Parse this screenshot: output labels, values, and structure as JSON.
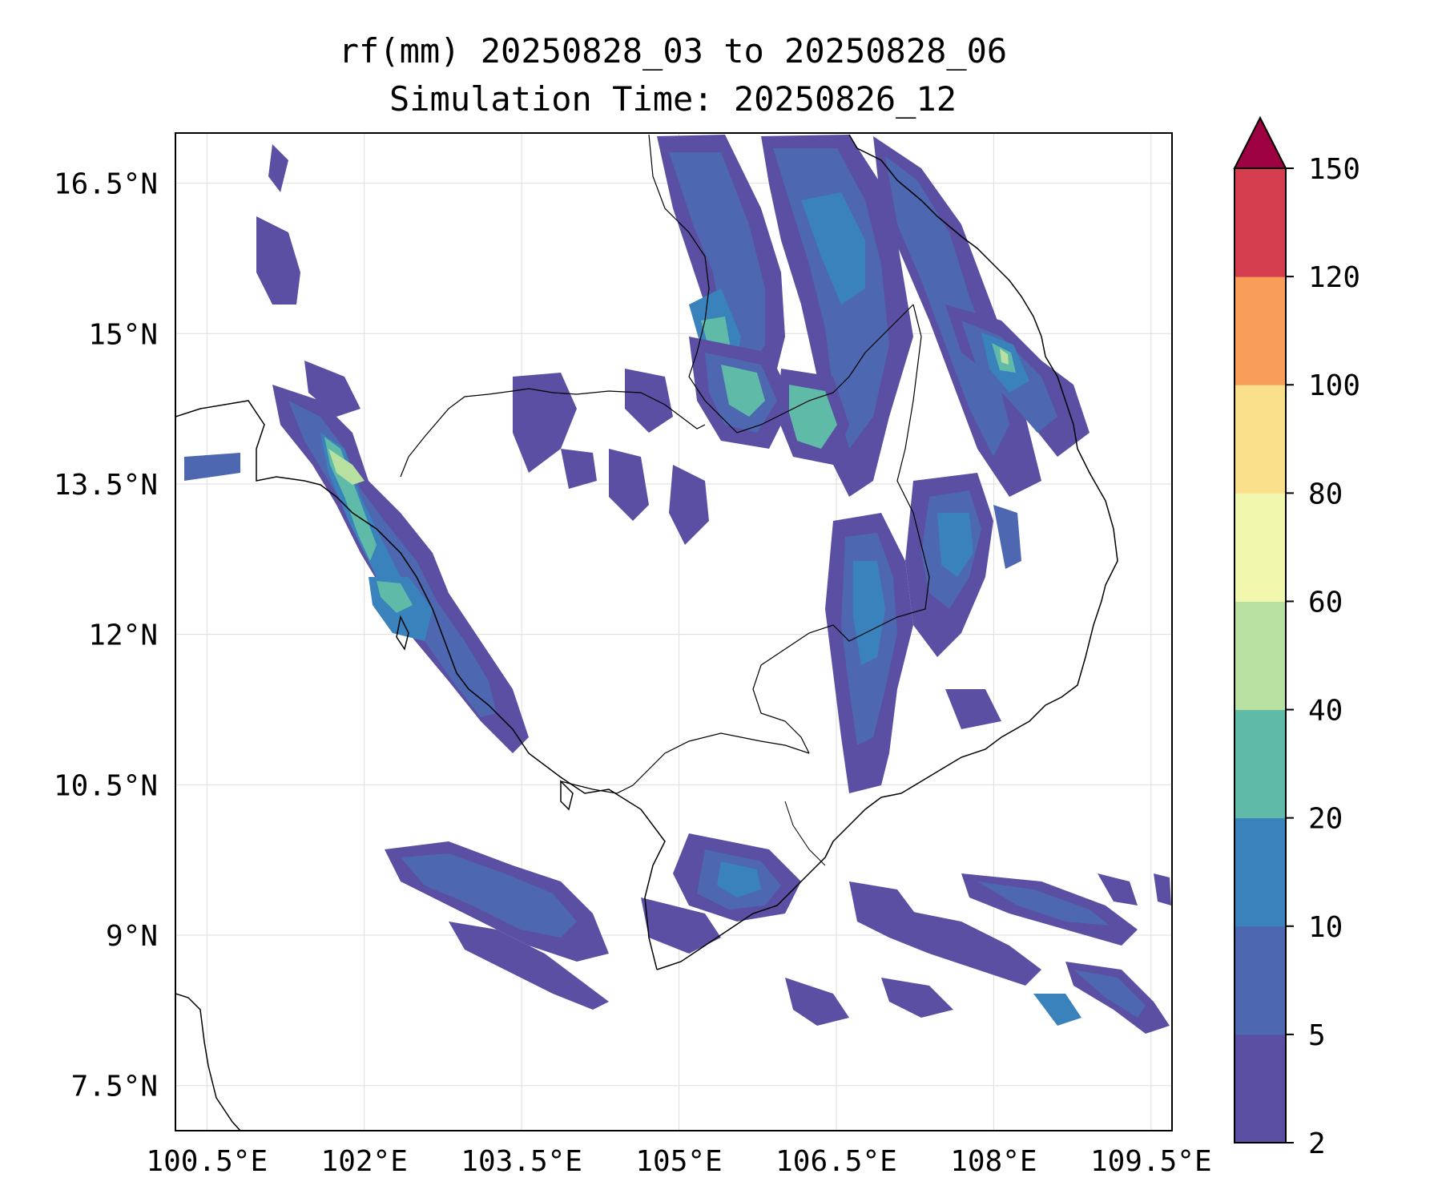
{
  "title_line1": "rf(mm) 20250828_03 to 20250828_06",
  "title_line2": "Simulation Time: 20250826_12",
  "map": {
    "lon_range": [
      100.2,
      109.7
    ],
    "lat_range": [
      7.05,
      17.0
    ],
    "lon_ticks": [
      {
        "value": 100.5,
        "label": "100.5°E"
      },
      {
        "value": 102.0,
        "label": "102°E"
      },
      {
        "value": 103.5,
        "label": "103.5°E"
      },
      {
        "value": 105.0,
        "label": "105°E"
      },
      {
        "value": 106.5,
        "label": "106.5°E"
      },
      {
        "value": 108.0,
        "label": "108°E"
      },
      {
        "value": 109.5,
        "label": "109.5°E"
      }
    ],
    "lat_ticks": [
      {
        "value": 16.5,
        "label": "16.5°N"
      },
      {
        "value": 15.0,
        "label": "15°N"
      },
      {
        "value": 13.5,
        "label": "13.5°N"
      },
      {
        "value": 12.0,
        "label": "12°N"
      },
      {
        "value": 10.5,
        "label": "10.5°N"
      },
      {
        "value": 9.0,
        "label": "9°N"
      },
      {
        "value": 7.5,
        "label": "7.5°N"
      }
    ],
    "grid": true
  },
  "colorbar": {
    "levels": [
      2,
      5,
      10,
      20,
      40,
      60,
      80,
      100,
      120,
      150
    ],
    "labels": [
      "2",
      "5",
      "10",
      "20",
      "40",
      "60",
      "80",
      "100",
      "120",
      "150"
    ],
    "colors": [
      "#5a4fa2",
      "#4d68b0",
      "#3a82bb",
      "#5fbaa8",
      "#b8e0a0",
      "#f1f8ad",
      "#fbe08c",
      "#f99d5b",
      "#d53e4f"
    ],
    "extend_color": "#9e0142",
    "extend": "max"
  },
  "colors": {
    "background": "#ffffff",
    "coastline": "#000000",
    "gridline": "#dddddd"
  }
}
